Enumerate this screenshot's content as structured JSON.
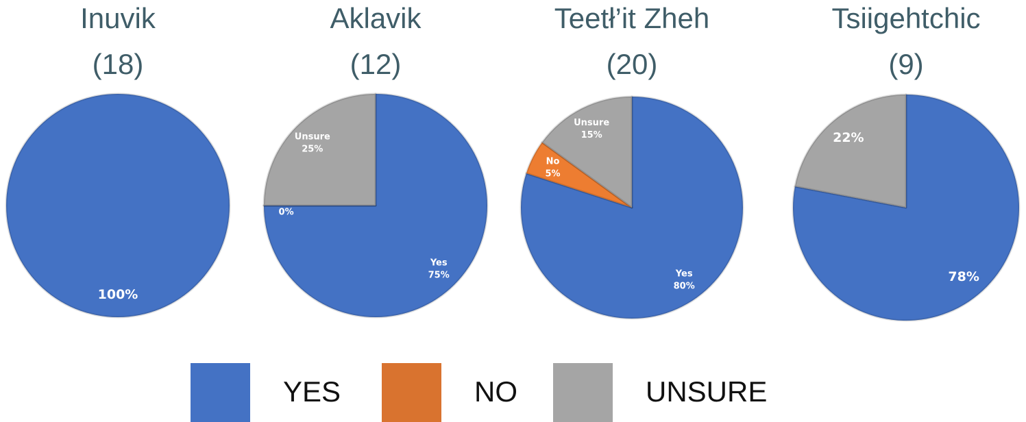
{
  "chart_data": [
    {
      "type": "pie",
      "title": "Inuvik",
      "subtitle": "(18)",
      "categories": [
        null
      ],
      "values": [
        100
      ],
      "value_labels": [
        "100%"
      ],
      "colors": [
        "#4472c4"
      ]
    },
    {
      "type": "pie",
      "title": "Aklavik",
      "subtitle": "(12)",
      "categories": [
        "Yes",
        "No",
        "Unsure"
      ],
      "values": [
        75,
        0,
        25
      ],
      "value_labels": [
        "75%",
        "0%",
        "25%"
      ],
      "colors": [
        "#4472c4",
        "#ed7d31",
        "#a5a5a5"
      ]
    },
    {
      "type": "pie",
      "title": "Teetł’it Zheh",
      "subtitle": "(20)",
      "categories": [
        "Yes",
        "No",
        "Unsure"
      ],
      "values": [
        80,
        5,
        15
      ],
      "value_labels": [
        "80%",
        "5%",
        "15%"
      ],
      "colors": [
        "#4472c4",
        "#ed7d31",
        "#a5a5a5"
      ]
    },
    {
      "type": "pie",
      "title": "Tsiigehtchic",
      "subtitle": "(9)",
      "categories": [
        null,
        null
      ],
      "values": [
        78,
        22
      ],
      "value_labels": [
        "78%",
        "22%"
      ],
      "colors": [
        "#4472c4",
        "#a5a5a5"
      ]
    }
  ],
  "legend": {
    "labels": [
      "YES",
      "NO",
      "UNSURE"
    ],
    "colors": [
      "#4472c4",
      "#d9732f",
      "#a5a5a5"
    ]
  }
}
